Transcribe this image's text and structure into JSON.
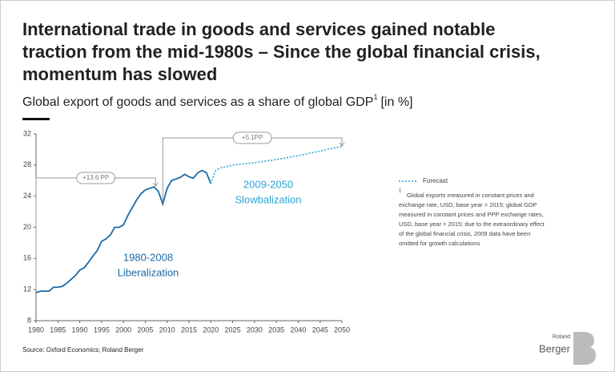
{
  "chart_data": {
    "type": "line",
    "title": [
      "International trade in goods and services gained notable",
      "traction from the mid-1980s – Since the global financial crisis,",
      "momentum has slowed"
    ],
    "subtitle": [
      "Global export of goods and services as a share of global GDP",
      "1",
      "[in %]"
    ],
    "series": [
      {
        "color": "#1d6aa5",
        "dashed": false,
        "x": [
          1980,
          1981,
          1982,
          1983,
          1984,
          1985,
          1986,
          1987,
          1988,
          1989,
          1990,
          1991,
          1992,
          1993,
          1994,
          1995,
          1996,
          1997,
          1998,
          1999,
          2000,
          2001,
          2002,
          2003,
          2004,
          2005,
          2006,
          2007,
          2008,
          2009,
          2010,
          2011,
          2012,
          2013,
          2014,
          2015,
          2016,
          2017,
          2018,
          2019,
          2020
        ],
        "values": [
          11.6,
          11.8,
          11.8,
          11.8,
          12.3,
          12.3,
          12.4,
          12.8,
          13.3,
          13.8,
          14.5,
          14.8,
          15.5,
          16.3,
          17.0,
          18.2,
          18.5,
          19.0,
          20.0,
          20.0,
          20.3,
          21.5,
          22.5,
          23.5,
          24.3,
          24.8,
          25.0,
          25.2,
          24.6,
          23.0,
          25.0,
          26.0,
          26.2,
          26.4,
          26.8,
          26.5,
          26.3,
          27.0,
          27.3,
          27.0,
          25.6
        ]
      },
      {
        "name": "Forecast",
        "color": "#2aa6d6",
        "dashed": true,
        "x": [
          2020,
          2021,
          2022,
          2025,
          2030,
          2035,
          2040,
          2045,
          2050
        ],
        "values": [
          25.6,
          27.2,
          27.6,
          28.0,
          28.3,
          28.7,
          29.2,
          29.8,
          30.4
        ]
      }
    ],
    "xlim": [
      1980,
      2050
    ],
    "xticks": [
      1980,
      1985,
      1990,
      1995,
      2000,
      2005,
      2010,
      2015,
      2020,
      2025,
      2030,
      2035,
      2040,
      2045,
      2050
    ],
    "ylim": [
      8,
      32
    ],
    "yticks": [
      8,
      12,
      16,
      20,
      24,
      28,
      32
    ],
    "annotations": [
      "+13.6 PP",
      "+5.1PP"
    ],
    "periods": [
      {
        "years": "1980-2008",
        "label": "Liberalization",
        "color": "#1d6aa5"
      },
      {
        "years": "2009-2050",
        "label": "Slowbalization",
        "color": "#2aa6d6"
      }
    ],
    "footnote": {
      "marker": "1",
      "lines": [
        "Global exports measured in constant prices and",
        "exchange rate, USD, base year = 2015; global GDP",
        "measured in constant prices and PPP exchange rates,",
        "USD, base year = 2015; due to the extraordinary effect",
        "of the global financial crisis, 2009 data have been",
        "omitted for growth calculations"
      ]
    },
    "source": "Source: Oxford Economics; Roland Berger",
    "logo": [
      "Roland",
      "Berger"
    ]
  }
}
